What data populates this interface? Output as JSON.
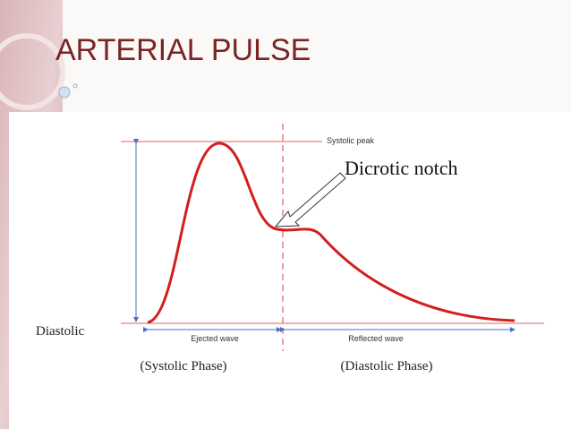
{
  "header": {
    "title": "ARTERIAL PULSE"
  },
  "diagram": {
    "peak_label": "Systolic peak",
    "notch_label": "Dicrotic notch",
    "baseline_label": "Diastolic",
    "ejected_label": "Ejected wave",
    "reflected_label": "Reflected wave",
    "systolic_phase": "(Systolic Phase)",
    "diastolic_phase": "(Diastolic Phase)"
  }
}
